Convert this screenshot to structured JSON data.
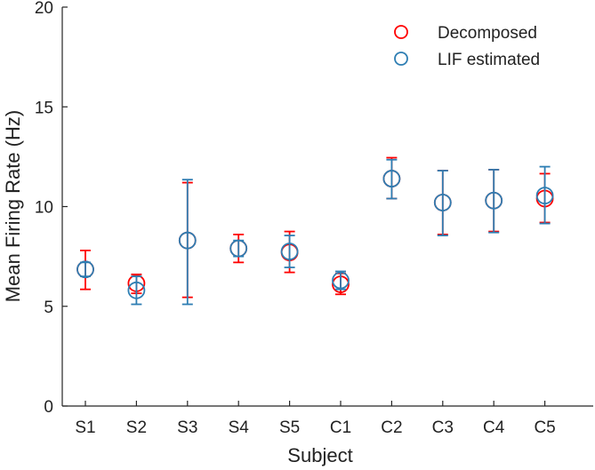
{
  "chart_data": {
    "type": "scatter",
    "title": "",
    "xlabel": "Subject",
    "ylabel": "Mean Firing Rate (Hz)",
    "ylim": [
      0,
      20
    ],
    "yticks": [
      0,
      5,
      10,
      15,
      20
    ],
    "grid": false,
    "legend_position": "top-right",
    "categories": [
      "S1",
      "S2",
      "S3",
      "S4",
      "S5",
      "C1",
      "C2",
      "C3",
      "C4",
      "C5"
    ],
    "series": [
      {
        "name": "Decomposed",
        "color": "#ff0000",
        "marker": "open-circle",
        "values": [
          6.85,
          6.15,
          8.3,
          7.9,
          7.7,
          6.1,
          11.4,
          10.2,
          10.3,
          10.4
        ],
        "err_low": [
          5.85,
          5.65,
          5.45,
          7.2,
          6.7,
          5.6,
          10.4,
          8.6,
          8.75,
          9.2
        ],
        "err_high": [
          7.8,
          6.6,
          11.2,
          8.6,
          8.75,
          6.65,
          12.45,
          11.8,
          11.85,
          11.65
        ]
      },
      {
        "name": "LIF estimated",
        "color": "#2e7eb3",
        "marker": "open-circle",
        "values": [
          6.85,
          5.8,
          8.3,
          7.9,
          7.75,
          6.3,
          11.4,
          10.2,
          10.3,
          10.55
        ],
        "err_low": [
          6.5,
          5.1,
          5.1,
          7.5,
          6.95,
          5.85,
          10.4,
          8.55,
          8.7,
          9.15
        ],
        "err_high": [
          7.2,
          6.5,
          11.35,
          8.3,
          8.55,
          6.75,
          12.35,
          11.8,
          11.85,
          12.0
        ]
      }
    ]
  }
}
